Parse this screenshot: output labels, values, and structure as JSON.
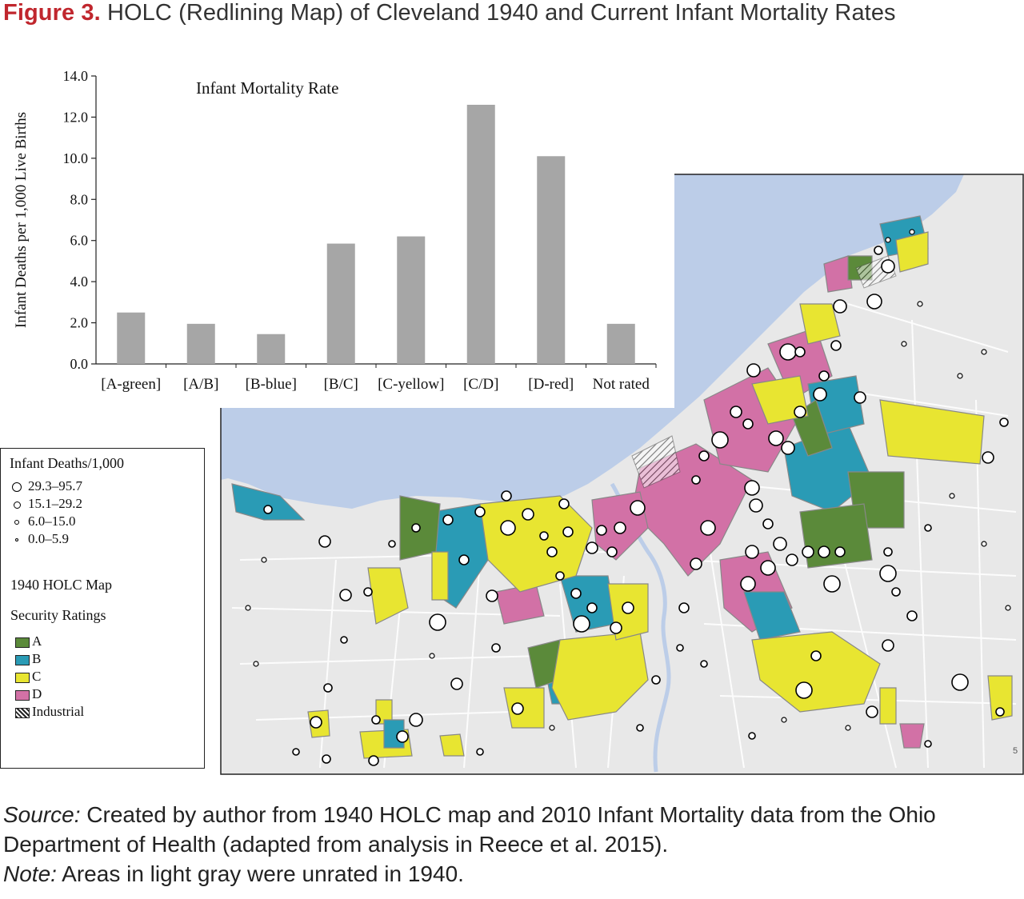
{
  "title": {
    "label": "Figure 3.",
    "text": "HOLC (Redlining Map) of Cleveland 1940 and Current Infant Mortality Rates"
  },
  "chart_data": {
    "type": "bar",
    "title": "Infant Mortality Rate",
    "ylabel": "Infant Deaths per 1,000 Live Births",
    "xlabel": "",
    "ylim": [
      0,
      14
    ],
    "yticks": [
      "0.0",
      "2.0",
      "4.0",
      "6.0",
      "8.0",
      "10.0",
      "12.0",
      "14.0"
    ],
    "categories": [
      "[A-green]",
      "[A/B]",
      "[B-blue]",
      "[B/C]",
      "[C-yellow]",
      "[C/D]",
      "[D-red]",
      "Not rated"
    ],
    "values": [
      2.5,
      1.95,
      1.45,
      5.85,
      6.2,
      12.6,
      10.1,
      1.95
    ],
    "bar_color": "#a6a6a6",
    "grid": false,
    "legend": "none"
  },
  "map": {
    "water_color": "#bccde8",
    "land_color": "#e8e8e8",
    "road_color": "#ffffff",
    "rating_colors": {
      "A": "#5b8a3a",
      "B": "#2a9bb5",
      "C": "#e8e531",
      "D": "#d271a6"
    },
    "corner_mark": "5"
  },
  "legend": {
    "title": "Infant Deaths/1,000",
    "size_classes": [
      "29.3–95.7",
      "15.1–29.2",
      "6.0–15.0",
      "0.0–5.9"
    ],
    "holc_title": "1940 HOLC Map",
    "ratings_title": "Security Ratings",
    "categories": [
      {
        "label": "A",
        "color": "#5b8a3a"
      },
      {
        "label": "B",
        "color": "#2a9bb5"
      },
      {
        "label": "C",
        "color": "#e8e531"
      },
      {
        "label": "D",
        "color": "#d271a6"
      },
      {
        "label": "Industrial",
        "color": "hatched"
      }
    ]
  },
  "caption": {
    "source_label": "Source:",
    "source_text": "Created by author from 1940 HOLC map and 2010 Infant Mortality data from the Ohio Department of Health (adapted from analysis in Reece et al. 2015).",
    "note_label": "Note:",
    "note_text": "Areas in light gray were unrated in 1940."
  }
}
